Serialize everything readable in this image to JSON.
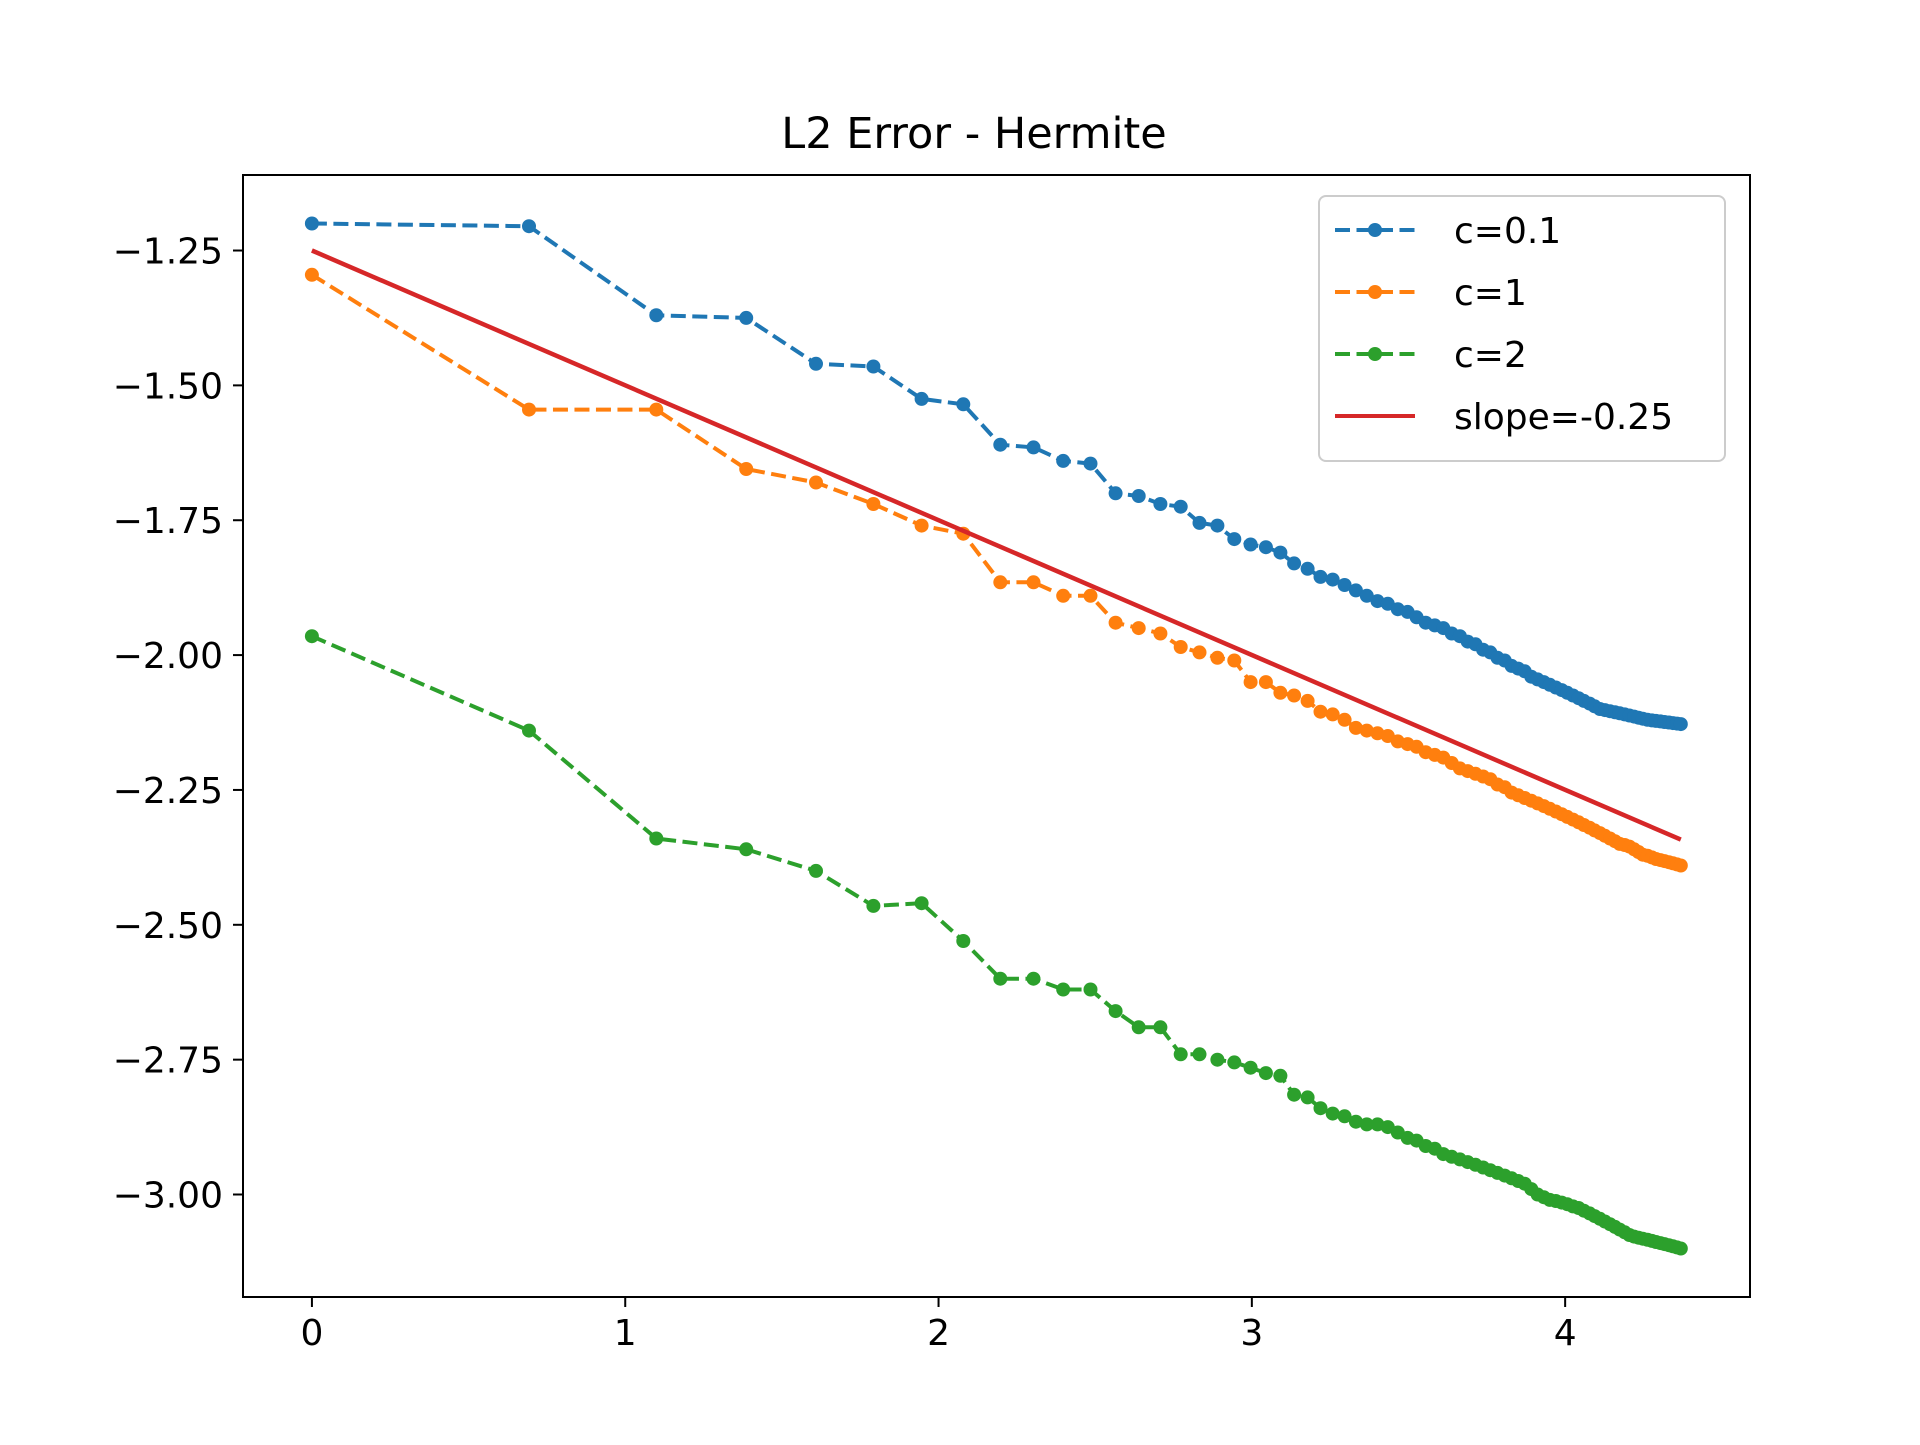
{
  "chart_data": {
    "type": "line",
    "title": "L2 Error - Hermite",
    "xlabel": "",
    "ylabel": "",
    "xlim": [
      -0.22,
      4.59
    ],
    "ylim": [
      -3.19,
      -1.11
    ],
    "xticks": [
      0,
      1,
      2,
      3,
      4
    ],
    "xtick_labels": [
      "0",
      "1",
      "2",
      "3",
      "4"
    ],
    "yticks": [
      -1.25,
      -1.5,
      -1.75,
      -2.0,
      -2.25,
      -2.5,
      -2.75,
      -3.0
    ],
    "ytick_labels": [
      "−1.25",
      "−1.50",
      "−1.75",
      "−2.00",
      "−2.25",
      "−2.50",
      "−2.75",
      "−3.00"
    ],
    "grid": false,
    "legend_position": "top-right",
    "series": [
      {
        "name": "c=0.1",
        "color": "#1f77b4",
        "style": "dashed-markers",
        "x": [
          0.0,
          0.693,
          1.099,
          1.386,
          1.609,
          1.792,
          1.946,
          2.079,
          2.197,
          2.303,
          2.398,
          2.485,
          2.565,
          2.639,
          2.708,
          2.773,
          2.833,
          2.89,
          2.944,
          2.996,
          3.045,
          3.091,
          3.135,
          3.178,
          3.219,
          3.258,
          3.296,
          3.332,
          3.367,
          3.401,
          3.434,
          3.466,
          3.497,
          3.526,
          3.555,
          3.584,
          3.611,
          3.638,
          3.664,
          3.689,
          3.714,
          3.738,
          3.761,
          3.784,
          3.807,
          3.829,
          3.85,
          3.871,
          3.892,
          3.912,
          3.932,
          3.951,
          3.97,
          3.989,
          4.007,
          4.025,
          4.043,
          4.06,
          4.078,
          4.094,
          4.111,
          4.127,
          4.143,
          4.159,
          4.174,
          4.19,
          4.205,
          4.22,
          4.234,
          4.248,
          4.263,
          4.277,
          4.29,
          4.304,
          4.317,
          4.331,
          4.344,
          4.357,
          4.369
        ],
        "y": [
          -1.2,
          -1.205,
          -1.37,
          -1.375,
          -1.46,
          -1.465,
          -1.525,
          -1.535,
          -1.61,
          -1.615,
          -1.64,
          -1.645,
          -1.7,
          -1.705,
          -1.72,
          -1.725,
          -1.755,
          -1.76,
          -1.785,
          -1.795,
          -1.8,
          -1.81,
          -1.83,
          -1.84,
          -1.855,
          -1.86,
          -1.87,
          -1.88,
          -1.89,
          -1.9,
          -1.905,
          -1.915,
          -1.92,
          -1.93,
          -1.94,
          -1.945,
          -1.95,
          -1.96,
          -1.965,
          -1.975,
          -1.98,
          -1.99,
          -1.995,
          -2.005,
          -2.01,
          -2.02,
          -2.025,
          -2.03,
          -2.04,
          -2.045,
          -2.05,
          -2.055,
          -2.06,
          -2.065,
          -2.07,
          -2.075,
          -2.08,
          -2.085,
          -2.09,
          -2.095,
          -2.1,
          -2.102,
          -2.104,
          -2.106,
          -2.108,
          -2.11,
          -2.112,
          -2.114,
          -2.116,
          -2.118,
          -2.12,
          -2.121,
          -2.122,
          -2.123,
          -2.124,
          -2.125,
          -2.126,
          -2.127,
          -2.128
        ]
      },
      {
        "name": "c=1",
        "color": "#ff7f0e",
        "style": "dashed-markers",
        "x": [
          0.0,
          0.693,
          1.099,
          1.386,
          1.609,
          1.792,
          1.946,
          2.079,
          2.197,
          2.303,
          2.398,
          2.485,
          2.565,
          2.639,
          2.708,
          2.773,
          2.833,
          2.89,
          2.944,
          2.996,
          3.045,
          3.091,
          3.135,
          3.178,
          3.219,
          3.258,
          3.296,
          3.332,
          3.367,
          3.401,
          3.434,
          3.466,
          3.497,
          3.526,
          3.555,
          3.584,
          3.611,
          3.638,
          3.664,
          3.689,
          3.714,
          3.738,
          3.761,
          3.784,
          3.807,
          3.829,
          3.85,
          3.871,
          3.892,
          3.912,
          3.932,
          3.951,
          3.97,
          3.989,
          4.007,
          4.025,
          4.043,
          4.06,
          4.078,
          4.094,
          4.111,
          4.127,
          4.143,
          4.159,
          4.174,
          4.19,
          4.205,
          4.22,
          4.234,
          4.248,
          4.263,
          4.277,
          4.29,
          4.304,
          4.317,
          4.331,
          4.344,
          4.357,
          4.369
        ],
        "y": [
          -1.295,
          -1.545,
          -1.545,
          -1.655,
          -1.68,
          -1.72,
          -1.76,
          -1.775,
          -1.865,
          -1.865,
          -1.89,
          -1.89,
          -1.94,
          -1.95,
          -1.96,
          -1.985,
          -1.995,
          -2.005,
          -2.01,
          -2.05,
          -2.05,
          -2.07,
          -2.075,
          -2.085,
          -2.105,
          -2.11,
          -2.12,
          -2.135,
          -2.14,
          -2.145,
          -2.15,
          -2.16,
          -2.165,
          -2.17,
          -2.18,
          -2.185,
          -2.19,
          -2.2,
          -2.21,
          -2.215,
          -2.22,
          -2.225,
          -2.23,
          -2.24,
          -2.245,
          -2.255,
          -2.26,
          -2.265,
          -2.27,
          -2.275,
          -2.28,
          -2.285,
          -2.29,
          -2.295,
          -2.3,
          -2.305,
          -2.31,
          -2.315,
          -2.32,
          -2.325,
          -2.33,
          -2.335,
          -2.34,
          -2.345,
          -2.35,
          -2.352,
          -2.355,
          -2.36,
          -2.365,
          -2.37,
          -2.372,
          -2.375,
          -2.378,
          -2.38,
          -2.382,
          -2.384,
          -2.386,
          -2.388,
          -2.39
        ]
      },
      {
        "name": "c=2",
        "color": "#2ca02c",
        "style": "dashed-markers",
        "x": [
          0.0,
          0.693,
          1.099,
          1.386,
          1.609,
          1.792,
          1.946,
          2.079,
          2.197,
          2.303,
          2.398,
          2.485,
          2.565,
          2.639,
          2.708,
          2.773,
          2.833,
          2.89,
          2.944,
          2.996,
          3.045,
          3.091,
          3.135,
          3.178,
          3.219,
          3.258,
          3.296,
          3.332,
          3.367,
          3.401,
          3.434,
          3.466,
          3.497,
          3.526,
          3.555,
          3.584,
          3.611,
          3.638,
          3.664,
          3.689,
          3.714,
          3.738,
          3.761,
          3.784,
          3.807,
          3.829,
          3.85,
          3.871,
          3.892,
          3.912,
          3.932,
          3.951,
          3.97,
          3.989,
          4.007,
          4.025,
          4.043,
          4.06,
          4.078,
          4.094,
          4.111,
          4.127,
          4.143,
          4.159,
          4.174,
          4.19,
          4.205,
          4.22,
          4.234,
          4.248,
          4.263,
          4.277,
          4.29,
          4.304,
          4.317,
          4.331,
          4.344,
          4.357,
          4.369
        ],
        "y": [
          -1.965,
          -2.14,
          -2.34,
          -2.36,
          -2.4,
          -2.465,
          -2.46,
          -2.53,
          -2.6,
          -2.6,
          -2.62,
          -2.62,
          -2.66,
          -2.69,
          -2.69,
          -2.74,
          -2.74,
          -2.75,
          -2.755,
          -2.765,
          -2.775,
          -2.78,
          -2.815,
          -2.82,
          -2.84,
          -2.85,
          -2.855,
          -2.865,
          -2.87,
          -2.87,
          -2.875,
          -2.885,
          -2.895,
          -2.9,
          -2.91,
          -2.915,
          -2.925,
          -2.93,
          -2.935,
          -2.94,
          -2.945,
          -2.95,
          -2.955,
          -2.96,
          -2.965,
          -2.97,
          -2.975,
          -2.98,
          -2.99,
          -3.0,
          -3.005,
          -3.01,
          -3.012,
          -3.015,
          -3.018,
          -3.022,
          -3.025,
          -3.03,
          -3.035,
          -3.04,
          -3.045,
          -3.05,
          -3.055,
          -3.06,
          -3.065,
          -3.07,
          -3.075,
          -3.078,
          -3.08,
          -3.082,
          -3.084,
          -3.086,
          -3.088,
          -3.09,
          -3.092,
          -3.094,
          -3.096,
          -3.098,
          -3.1
        ]
      },
      {
        "name": "slope=-0.25",
        "color": "#d62728",
        "style": "solid",
        "x": [
          0.0,
          4.369
        ],
        "y": [
          -1.25,
          -2.342
        ]
      }
    ]
  }
}
